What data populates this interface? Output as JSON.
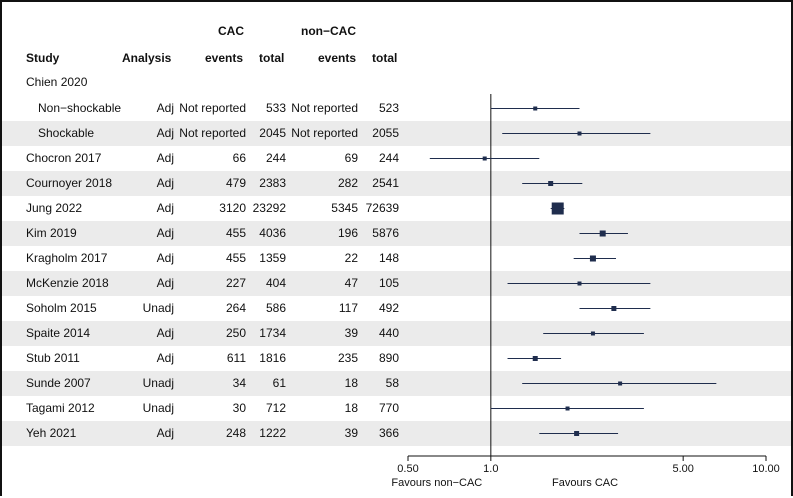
{
  "table": {
    "group_headers": {
      "cac": "CAC",
      "noncac": "non−CAC"
    },
    "columns": {
      "study": "Study",
      "analysis": "Analysis",
      "cac_events": "events",
      "cac_total": "total",
      "noncac_events": "events",
      "noncac_total": "total"
    },
    "group_label": "Chien 2020"
  },
  "chart_data": {
    "type": "forest",
    "x_scale": "log",
    "xlim": [
      0.5,
      10.0
    ],
    "ticks": [
      "0.50",
      "1.0",
      "5.00",
      "10.00"
    ],
    "tick_values": [
      0.5,
      1.0,
      5.0,
      10.0
    ],
    "reference_line": 1.0,
    "favours_left": "Favours non−CAC",
    "favours_right": "Favours CAC",
    "studies": [
      {
        "name": "Non−shockable",
        "indent": true,
        "analysis": "Adj",
        "cac_events": "Not reported",
        "cac_total": "533",
        "noncac_events": "Not reported",
        "noncac_total": "523",
        "est": 1.45,
        "lo": 1.0,
        "hi": 2.1,
        "size": 4
      },
      {
        "name": "Shockable",
        "indent": true,
        "analysis": "Adj",
        "cac_events": "Not reported",
        "cac_total": "2045",
        "noncac_events": "Not reported",
        "noncac_total": "2055",
        "est": 2.1,
        "lo": 1.1,
        "hi": 3.8,
        "size": 4
      },
      {
        "name": "Chocron 2017",
        "indent": false,
        "analysis": "Adj",
        "cac_events": "66",
        "cac_total": "244",
        "noncac_events": "69",
        "noncac_total": "244",
        "est": 0.95,
        "lo": 0.6,
        "hi": 1.5,
        "size": 4
      },
      {
        "name": "Cournoyer 2018",
        "indent": false,
        "analysis": "Adj",
        "cac_events": "479",
        "cac_total": "2383",
        "noncac_events": "282",
        "noncac_total": "2541",
        "est": 1.65,
        "lo": 1.3,
        "hi": 2.15,
        "size": 5
      },
      {
        "name": "Jung 2022",
        "indent": false,
        "analysis": "Adj",
        "cac_events": "3120",
        "cac_total": "23292",
        "noncac_events": "5345",
        "noncac_total": "72639",
        "est": 1.75,
        "lo": 1.65,
        "hi": 1.85,
        "size": 12
      },
      {
        "name": "Kim 2019",
        "indent": false,
        "analysis": "Adj",
        "cac_events": "455",
        "cac_total": "4036",
        "noncac_events": "196",
        "noncac_total": "5876",
        "est": 2.55,
        "lo": 2.1,
        "hi": 3.15,
        "size": 6
      },
      {
        "name": "Kragholm 2017",
        "indent": false,
        "analysis": "Adj",
        "cac_events": "455",
        "cac_total": "1359",
        "noncac_events": "22",
        "noncac_total": "148",
        "est": 2.35,
        "lo": 2.0,
        "hi": 2.85,
        "size": 6
      },
      {
        "name": "McKenzie 2018",
        "indent": false,
        "analysis": "Adj",
        "cac_events": "227",
        "cac_total": "404",
        "noncac_events": "47",
        "noncac_total": "105",
        "est": 2.1,
        "lo": 1.15,
        "hi": 3.8,
        "size": 4
      },
      {
        "name": "Soholm 2015",
        "indent": false,
        "analysis": "Unadj",
        "cac_events": "264",
        "cac_total": "586",
        "noncac_events": "117",
        "noncac_total": "492",
        "est": 2.8,
        "lo": 2.1,
        "hi": 3.8,
        "size": 5
      },
      {
        "name": "Spaite 2014",
        "indent": false,
        "analysis": "Adj",
        "cac_events": "250",
        "cac_total": "1734",
        "noncac_events": "39",
        "noncac_total": "440",
        "est": 2.35,
        "lo": 1.55,
        "hi": 3.6,
        "size": 4
      },
      {
        "name": "Stub 2011",
        "indent": false,
        "analysis": "Adj",
        "cac_events": "611",
        "cac_total": "1816",
        "noncac_events": "235",
        "noncac_total": "890",
        "est": 1.45,
        "lo": 1.15,
        "hi": 1.8,
        "size": 5
      },
      {
        "name": "Sunde 2007",
        "indent": false,
        "analysis": "Unadj",
        "cac_events": "34",
        "cac_total": "61",
        "noncac_events": "18",
        "noncac_total": "58",
        "est": 2.95,
        "lo": 1.3,
        "hi": 6.6,
        "size": 4
      },
      {
        "name": "Tagami 2012",
        "indent": false,
        "analysis": "Unadj",
        "cac_events": "30",
        "cac_total": "712",
        "noncac_events": "18",
        "noncac_total": "770",
        "est": 1.9,
        "lo": 1.0,
        "hi": 3.6,
        "size": 4
      },
      {
        "name": "Yeh 2021",
        "indent": false,
        "analysis": "Adj",
        "cac_events": "248",
        "cac_total": "1222",
        "noncac_events": "39",
        "noncac_total": "366",
        "est": 2.05,
        "lo": 1.5,
        "hi": 2.9,
        "size": 5
      }
    ]
  }
}
